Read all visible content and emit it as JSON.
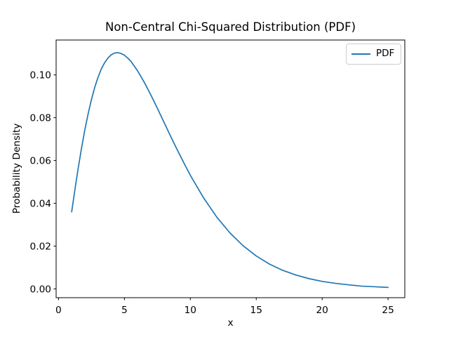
{
  "chart_data": {
    "type": "line",
    "title": "Non-Central Chi-Squared Distribution (PDF)",
    "xlabel": "x",
    "ylabel": "Probability Density",
    "grid": false,
    "legend_position": "upper right",
    "xlim": [
      -0.18,
      26.27
    ],
    "ylim": [
      -0.0041,
      0.1163
    ],
    "x_ticks": {
      "values": [
        0,
        5,
        10,
        15,
        20,
        25
      ],
      "labels": [
        "0",
        "5",
        "10",
        "15",
        "20",
        "25"
      ]
    },
    "y_ticks": {
      "values": [
        0.0,
        0.02,
        0.04,
        0.06,
        0.08,
        0.1
      ],
      "labels": [
        "0.00",
        "0.02",
        "0.04",
        "0.06",
        "0.08",
        "0.10"
      ]
    },
    "series": [
      {
        "name": "PDF",
        "color": "#1f77b4",
        "x": [
          1,
          1.25,
          1.5,
          1.75,
          2,
          2.25,
          2.5,
          2.75,
          3,
          3.25,
          3.5,
          3.75,
          4,
          4.25,
          4.5,
          4.75,
          5,
          5.25,
          5.5,
          6,
          6.5,
          7,
          7.5,
          8,
          8.5,
          9,
          9.5,
          10,
          11,
          12,
          13,
          14,
          15,
          16,
          17,
          18,
          19,
          20,
          21,
          22,
          23,
          24,
          25
        ],
        "y": [
          0.036,
          0.0466,
          0.0566,
          0.0659,
          0.0744,
          0.0819,
          0.0885,
          0.0942,
          0.0989,
          0.1028,
          0.1057,
          0.1079,
          0.1094,
          0.1102,
          0.1104,
          0.11,
          0.1092,
          0.1079,
          0.1063,
          0.1019,
          0.0966,
          0.0907,
          0.0844,
          0.0779,
          0.0714,
          0.0651,
          0.059,
          0.0531,
          0.0426,
          0.0336,
          0.0262,
          0.0202,
          0.0154,
          0.0116,
          0.0087,
          0.0065,
          0.0048,
          0.0035,
          0.0026,
          0.0019,
          0.0013,
          0.001,
          0.0007
        ]
      }
    ]
  },
  "legend": {
    "entries": [
      {
        "label": "PDF",
        "color": "#1f77b4"
      }
    ]
  },
  "colors": {
    "line": "#1f77b4",
    "spine": "#000000",
    "text": "#000000",
    "legend_border": "#cccccc",
    "background": "#ffffff"
  }
}
